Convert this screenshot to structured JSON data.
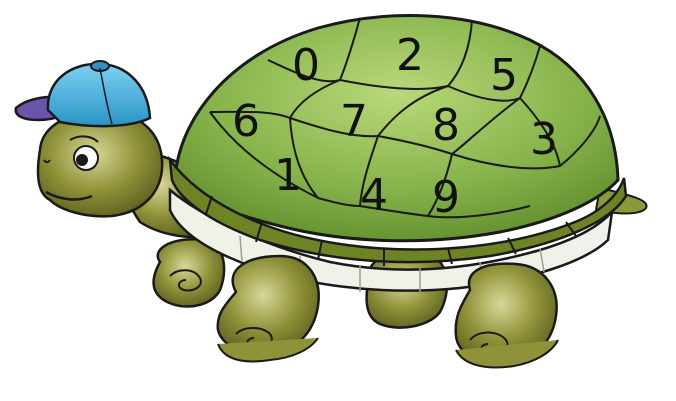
{
  "digits": [
    "0",
    "2",
    "5",
    "6",
    "7",
    "8",
    "3",
    "1",
    "4",
    "9"
  ],
  "colors": {
    "shell_fill": "#86b34a",
    "shell_rim": "#6d8324",
    "skin": "#7c7f2e",
    "belly": "#f0f2ea",
    "cap": "#3fb1e3",
    "cap_brim": "#6a55a8",
    "outline": "#1a1a1a"
  }
}
